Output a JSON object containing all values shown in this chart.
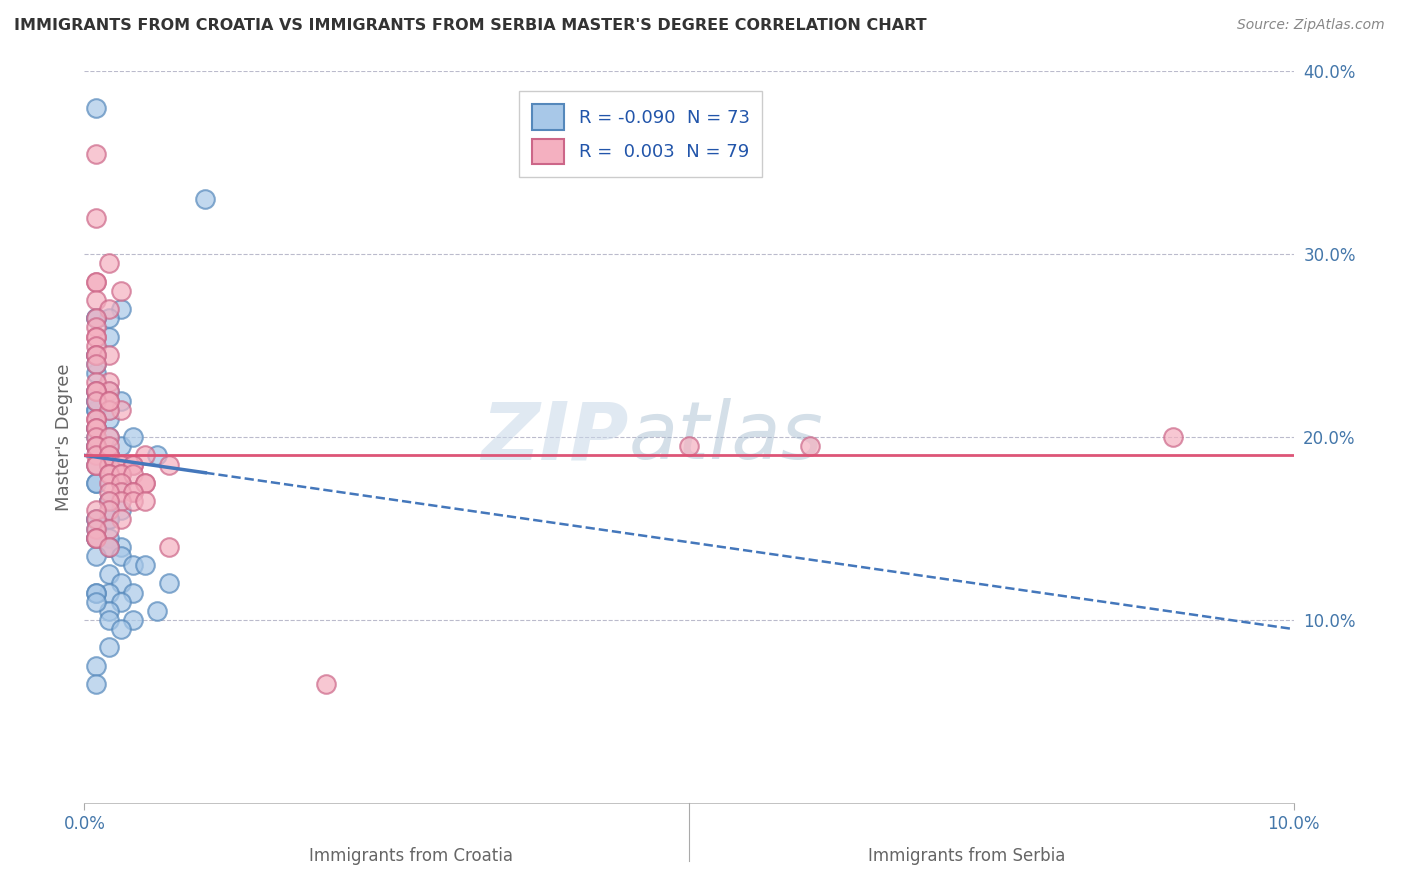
{
  "title": "IMMIGRANTS FROM CROATIA VS IMMIGRANTS FROM SERBIA MASTER'S DEGREE CORRELATION CHART",
  "source": "Source: ZipAtlas.com",
  "xlabel_bottom": [
    "Immigrants from Croatia",
    "Immigrants from Serbia"
  ],
  "ylabel": "Master's Degree",
  "watermark_zip": "ZIP",
  "watermark_atlas": "atlas",
  "legend": [
    {
      "label_r": "R = ",
      "label_rval": "-0.090",
      "label_n": "  N = ",
      "label_nval": "73"
    },
    {
      "label_r": "R =  ",
      "label_rval": "0.003",
      "label_n": "  N = ",
      "label_nval": "79"
    }
  ],
  "xlim": [
    0,
    0.1
  ],
  "ylim": [
    0,
    0.4
  ],
  "xticks": [
    0.0,
    0.1
  ],
  "yticks": [
    0.1,
    0.2,
    0.3,
    0.4
  ],
  "xticklabels": [
    "0.0%",
    "10.0%"
  ],
  "yticklabels": [
    "10.0%",
    "20.0%",
    "30.0%",
    "40.0%"
  ],
  "blue_fill": "#a8c8e8",
  "blue_edge": "#5588bb",
  "pink_fill": "#f4b0c0",
  "pink_edge": "#cc6688",
  "blue_line_color": "#4477bb",
  "pink_line_color": "#dd5577",
  "background_color": "#ffffff",
  "grid_color": "#bbbbcc",
  "title_color": "#333333",
  "R_croatia": -0.09,
  "N_croatia": 73,
  "R_serbia": 0.003,
  "N_serbia": 79,
  "blue_trend_x0": 0.0,
  "blue_trend_y0": 0.19,
  "blue_trend_x1": 0.1,
  "blue_trend_y1": 0.095,
  "pink_trend_y": 0.19,
  "croatia_x": [
    0.001,
    0.006,
    0.01,
    0.003,
    0.001,
    0.002,
    0.001,
    0.001,
    0.002,
    0.001,
    0.001,
    0.001,
    0.002,
    0.001,
    0.001,
    0.001,
    0.002,
    0.001,
    0.001,
    0.001,
    0.002,
    0.003,
    0.001,
    0.001,
    0.002,
    0.001,
    0.002,
    0.001,
    0.003,
    0.002,
    0.001,
    0.001,
    0.002,
    0.001,
    0.003,
    0.002,
    0.001,
    0.002,
    0.001,
    0.004,
    0.002,
    0.003,
    0.002,
    0.001,
    0.002,
    0.001,
    0.001,
    0.003,
    0.002,
    0.002,
    0.001,
    0.002,
    0.001,
    0.003,
    0.004,
    0.002,
    0.005,
    0.003,
    0.007,
    0.004,
    0.002,
    0.003,
    0.006,
    0.004,
    0.001,
    0.002,
    0.001,
    0.001,
    0.002,
    0.003,
    0.002,
    0.001,
    0.001
  ],
  "croatia_y": [
    0.38,
    0.19,
    0.33,
    0.27,
    0.265,
    0.255,
    0.245,
    0.235,
    0.265,
    0.265,
    0.24,
    0.245,
    0.225,
    0.215,
    0.215,
    0.225,
    0.215,
    0.22,
    0.225,
    0.22,
    0.21,
    0.22,
    0.2,
    0.205,
    0.19,
    0.205,
    0.2,
    0.195,
    0.195,
    0.19,
    0.195,
    0.185,
    0.185,
    0.175,
    0.175,
    0.165,
    0.175,
    0.165,
    0.155,
    0.2,
    0.165,
    0.16,
    0.155,
    0.155,
    0.155,
    0.15,
    0.145,
    0.14,
    0.145,
    0.14,
    0.145,
    0.14,
    0.135,
    0.135,
    0.13,
    0.125,
    0.13,
    0.12,
    0.12,
    0.115,
    0.115,
    0.11,
    0.105,
    0.1,
    0.115,
    0.105,
    0.115,
    0.11,
    0.1,
    0.095,
    0.085,
    0.075,
    0.065
  ],
  "serbia_x": [
    0.001,
    0.001,
    0.002,
    0.001,
    0.001,
    0.001,
    0.002,
    0.001,
    0.001,
    0.001,
    0.001,
    0.001,
    0.001,
    0.002,
    0.001,
    0.001,
    0.002,
    0.001,
    0.003,
    0.002,
    0.001,
    0.001,
    0.002,
    0.001,
    0.003,
    0.002,
    0.001,
    0.001,
    0.002,
    0.001,
    0.001,
    0.001,
    0.002,
    0.001,
    0.001,
    0.001,
    0.002,
    0.002,
    0.003,
    0.002,
    0.001,
    0.002,
    0.001,
    0.003,
    0.004,
    0.002,
    0.005,
    0.003,
    0.007,
    0.004,
    0.002,
    0.003,
    0.004,
    0.005,
    0.002,
    0.003,
    0.004,
    0.005,
    0.003,
    0.004,
    0.002,
    0.003,
    0.004,
    0.005,
    0.002,
    0.002,
    0.001,
    0.003,
    0.001,
    0.002,
    0.001,
    0.001,
    0.001,
    0.002,
    0.007,
    0.05,
    0.06,
    0.02,
    0.09
  ],
  "serbia_y": [
    0.355,
    0.32,
    0.295,
    0.285,
    0.285,
    0.275,
    0.27,
    0.265,
    0.26,
    0.255,
    0.255,
    0.25,
    0.245,
    0.245,
    0.245,
    0.24,
    0.23,
    0.23,
    0.28,
    0.225,
    0.225,
    0.225,
    0.22,
    0.22,
    0.215,
    0.215,
    0.21,
    0.21,
    0.22,
    0.205,
    0.205,
    0.2,
    0.2,
    0.195,
    0.195,
    0.19,
    0.19,
    0.195,
    0.185,
    0.19,
    0.185,
    0.185,
    0.185,
    0.185,
    0.185,
    0.18,
    0.19,
    0.18,
    0.185,
    0.185,
    0.18,
    0.18,
    0.18,
    0.175,
    0.175,
    0.175,
    0.17,
    0.175,
    0.17,
    0.17,
    0.17,
    0.165,
    0.165,
    0.165,
    0.165,
    0.16,
    0.16,
    0.155,
    0.155,
    0.15,
    0.15,
    0.145,
    0.145,
    0.14,
    0.14,
    0.195,
    0.195,
    0.065,
    0.2
  ]
}
